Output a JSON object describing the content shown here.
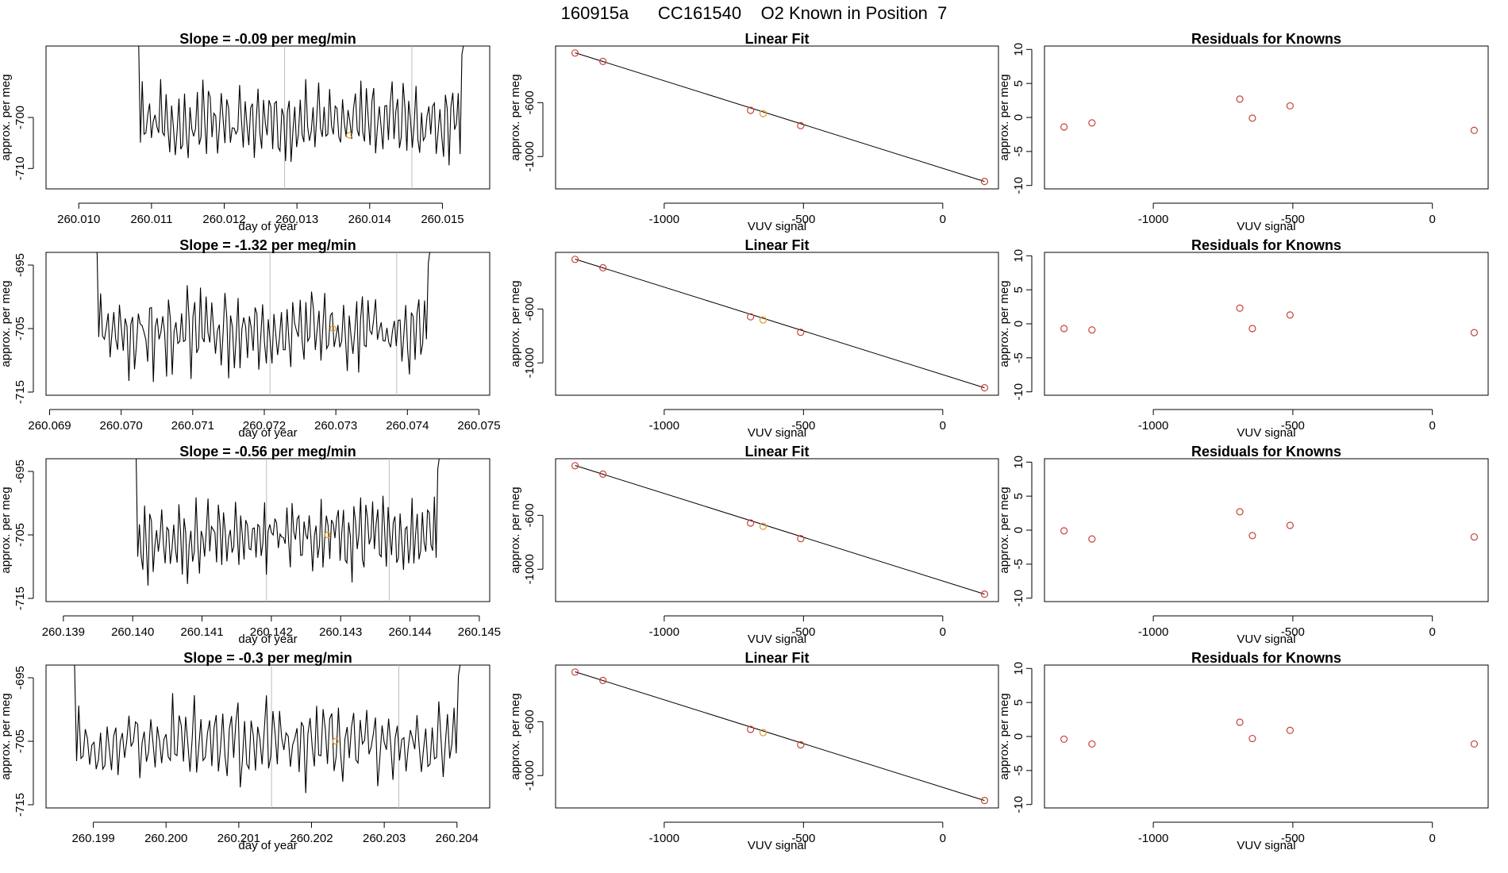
{
  "page": {
    "title": "160915a      CC161540    O2 Known in Position  7"
  },
  "colors": {
    "line": "#000000",
    "marker_red": "#c8413a",
    "marker_orange": "#e39a2a",
    "vertical_rule": "#bdbdbd",
    "axis": "#000000"
  },
  "chart_data": [
    {
      "type": "line",
      "row": 0,
      "col": 0,
      "title": "Slope =  -0.09  per meg/min",
      "xlabel": "day of year",
      "ylabel": "approx. per meg",
      "xlim": [
        260.00955,
        260.01565
      ],
      "ylim": [
        -714,
        -686
      ],
      "xticks": [
        260.01,
        260.011,
        260.012,
        260.013,
        260.014,
        260.015
      ],
      "xtick_labels": [
        "260.010",
        "260.011",
        "260.012",
        "260.013",
        "260.014",
        "260.015"
      ],
      "yticks": [
        -700,
        -710
      ],
      "ytick_labels": [
        "-700",
        "-710"
      ],
      "vlines": [
        260.01283,
        260.01458
      ],
      "orange_point": {
        "x": 260.01372,
        "y": -703.5
      },
      "x_start": 260.01062,
      "x_end": 260.01542,
      "seed": 11
    },
    {
      "type": "scatter",
      "row": 0,
      "col": 1,
      "title": "Linear Fit",
      "xlabel": "VUV signal",
      "ylabel": "approx. per meg",
      "xlim": [
        -1390,
        200
      ],
      "ylim": [
        -1240,
        -180
      ],
      "xticks": [
        -1000,
        -500,
        0
      ],
      "xtick_labels": [
        "-1000",
        "-500",
        "0"
      ],
      "yticks": [
        -600,
        -1000
      ],
      "ytick_labels": [
        "-600",
        "-1000"
      ],
      "fit_line": [
        [
          -1320,
          -230
        ],
        [
          150,
          -1185
        ]
      ],
      "red_points": [
        [
          -1320,
          -232
        ],
        [
          -1220,
          -294
        ],
        [
          -690,
          -657
        ],
        [
          -510,
          -771
        ],
        [
          150,
          -1185
        ]
      ],
      "orange_points": [
        [
          -645,
          -681
        ]
      ]
    },
    {
      "type": "scatter",
      "row": 0,
      "col": 2,
      "title": "Residuals for Knowns",
      "xlabel": "VUV signal",
      "ylabel": "approx. per meg",
      "xlim": [
        -1390,
        200
      ],
      "ylim": [
        -10.5,
        10.5
      ],
      "xticks": [
        -1000,
        -500,
        0
      ],
      "xtick_labels": [
        "-1000",
        "-500",
        "0"
      ],
      "yticks": [
        10,
        5,
        0,
        -5,
        -10
      ],
      "ytick_labels": [
        "10",
        "5",
        "0",
        "-5",
        "-10"
      ],
      "red_points": [
        [
          -1320,
          -1.4
        ],
        [
          -1220,
          -0.8
        ],
        [
          -690,
          2.7
        ],
        [
          -645,
          -0.1
        ],
        [
          -510,
          1.7
        ],
        [
          150,
          -1.9
        ]
      ]
    },
    {
      "type": "line",
      "row": 1,
      "col": 0,
      "title": "Slope =  -1.32  per meg/min",
      "xlabel": "day of year",
      "ylabel": "approx. per meg",
      "xlim": [
        260.06895,
        260.07515
      ],
      "ylim": [
        -715.5,
        -693
      ],
      "xticks": [
        260.069,
        260.07,
        260.071,
        260.072,
        260.073,
        260.074,
        260.075
      ],
      "xtick_labels": [
        "260.069",
        "260.070",
        "260.071",
        "260.072",
        "260.073",
        "260.074",
        "260.075"
      ],
      "yticks": [
        -695,
        -705,
        -715
      ],
      "ytick_labels": [
        "-695",
        "-705",
        "-715"
      ],
      "vlines": [
        260.07208,
        260.07385
      ],
      "orange_point": {
        "x": 260.07296,
        "y": -705
      },
      "x_start": 260.06945,
      "x_end": 260.07445,
      "seed": 23
    },
    {
      "type": "scatter",
      "row": 1,
      "col": 1,
      "title": "Linear Fit",
      "xlabel": "VUV signal",
      "ylabel": "approx. per meg",
      "xlim": [
        -1390,
        200
      ],
      "ylim": [
        -1240,
        -180
      ],
      "xticks": [
        -1000,
        -500,
        0
      ],
      "xtick_labels": [
        "-1000",
        "-500",
        "0"
      ],
      "yticks": [
        -600,
        -1000
      ],
      "ytick_labels": [
        "-600",
        "-1000"
      ],
      "fit_line": [
        [
          -1320,
          -230
        ],
        [
          150,
          -1185
        ]
      ],
      "red_points": [
        [
          -1320,
          -232
        ],
        [
          -1220,
          -294
        ],
        [
          -690,
          -658
        ],
        [
          -510,
          -773
        ],
        [
          150,
          -1185
        ]
      ],
      "orange_points": [
        [
          -645,
          -681
        ]
      ]
    },
    {
      "type": "scatter",
      "row": 1,
      "col": 2,
      "title": "Residuals for Knowns",
      "xlabel": "VUV signal",
      "ylabel": "approx. per meg",
      "xlim": [
        -1390,
        200
      ],
      "ylim": [
        -10.5,
        10.5
      ],
      "xticks": [
        -1000,
        -500,
        0
      ],
      "xtick_labels": [
        "-1000",
        "-500",
        "0"
      ],
      "yticks": [
        10,
        5,
        0,
        -5,
        -10
      ],
      "ytick_labels": [
        "10",
        "5",
        "0",
        "-5",
        "-10"
      ],
      "red_points": [
        [
          -1320,
          -0.7
        ],
        [
          -1220,
          -0.9
        ],
        [
          -690,
          2.3
        ],
        [
          -645,
          -0.7
        ],
        [
          -510,
          1.3
        ],
        [
          150,
          -1.3
        ]
      ]
    },
    {
      "type": "line",
      "row": 2,
      "col": 0,
      "title": "Slope =  -0.56  per meg/min",
      "xlabel": "day of year",
      "ylabel": "approx. per meg",
      "xlim": [
        260.13875,
        260.14515
      ],
      "ylim": [
        -715.5,
        -693
      ],
      "xticks": [
        260.139,
        260.14,
        260.141,
        260.142,
        260.143,
        260.144,
        260.145
      ],
      "xtick_labels": [
        "260.139",
        "260.140",
        "260.141",
        "260.142",
        "260.143",
        "260.144",
        "260.145"
      ],
      "yticks": [
        -695,
        -705,
        -715
      ],
      "ytick_labels": [
        "-695",
        "-705",
        "-715"
      ],
      "vlines": [
        260.14193,
        260.1437
      ],
      "orange_point": {
        "x": 260.14281,
        "y": -705
      },
      "x_start": 260.13985,
      "x_end": 260.14455,
      "seed": 37
    },
    {
      "type": "scatter",
      "row": 2,
      "col": 1,
      "title": "Linear Fit",
      "xlabel": "VUV signal",
      "ylabel": "approx. per meg",
      "xlim": [
        -1390,
        200
      ],
      "ylim": [
        -1240,
        -180
      ],
      "xticks": [
        -1000,
        -500,
        0
      ],
      "xtick_labels": [
        "-1000",
        "-500",
        "0"
      ],
      "yticks": [
        -600,
        -1000
      ],
      "ytick_labels": [
        "-600",
        "-1000"
      ],
      "fit_line": [
        [
          -1320,
          -230
        ],
        [
          150,
          -1185
        ]
      ],
      "red_points": [
        [
          -1320,
          -232
        ],
        [
          -1220,
          -294
        ],
        [
          -690,
          -657
        ],
        [
          -510,
          -773
        ],
        [
          150,
          -1185
        ]
      ],
      "orange_points": [
        [
          -645,
          -681
        ]
      ]
    },
    {
      "type": "scatter",
      "row": 2,
      "col": 2,
      "title": "Residuals for Knowns",
      "xlabel": "VUV signal",
      "ylabel": "approx. per meg",
      "xlim": [
        -1390,
        200
      ],
      "ylim": [
        -10.5,
        10.5
      ],
      "xticks": [
        -1000,
        -500,
        0
      ],
      "xtick_labels": [
        "-1000",
        "-500",
        "0"
      ],
      "yticks": [
        10,
        5,
        0,
        -5,
        -10
      ],
      "ytick_labels": [
        "10",
        "5",
        "0",
        "-5",
        "-10"
      ],
      "red_points": [
        [
          -1320,
          -0.1
        ],
        [
          -1220,
          -1.3
        ],
        [
          -690,
          2.7
        ],
        [
          -645,
          -0.8
        ],
        [
          -510,
          0.7
        ],
        [
          150,
          -1.0
        ]
      ]
    },
    {
      "type": "line",
      "row": 3,
      "col": 0,
      "title": "Slope =  -0.3  per meg/min",
      "xlabel": "day of year",
      "ylabel": "approx. per meg",
      "xlim": [
        260.19835,
        260.20445
      ],
      "ylim": [
        -715.5,
        -693
      ],
      "xticks": [
        260.199,
        260.2,
        260.201,
        260.202,
        260.203,
        260.204
      ],
      "xtick_labels": [
        "260.199",
        "260.200",
        "260.201",
        "260.202",
        "260.203",
        "260.204"
      ],
      "yticks": [
        -695,
        -705,
        -715
      ],
      "ytick_labels": [
        "-695",
        "-705",
        "-715"
      ],
      "vlines": [
        260.20145,
        260.2032
      ],
      "orange_point": {
        "x": 260.20233,
        "y": -705
      },
      "x_start": 260.1985,
      "x_end": 260.2042,
      "seed": 53
    },
    {
      "type": "scatter",
      "row": 3,
      "col": 1,
      "title": "Linear Fit",
      "xlabel": "VUV signal",
      "ylabel": "approx. per meg",
      "xlim": [
        -1390,
        200
      ],
      "ylim": [
        -1240,
        -180
      ],
      "xticks": [
        -1000,
        -500,
        0
      ],
      "xtick_labels": [
        "-1000",
        "-500",
        "0"
      ],
      "yticks": [
        -600,
        -1000
      ],
      "ytick_labels": [
        "-600",
        "-1000"
      ],
      "fit_line": [
        [
          -1320,
          -230
        ],
        [
          150,
          -1185
        ]
      ],
      "red_points": [
        [
          -1320,
          -232
        ],
        [
          -1220,
          -294
        ],
        [
          -690,
          -657
        ],
        [
          -510,
          -772
        ],
        [
          150,
          -1185
        ]
      ],
      "orange_points": [
        [
          -645,
          -681
        ]
      ]
    },
    {
      "type": "scatter",
      "row": 3,
      "col": 2,
      "title": "Residuals for Knowns",
      "xlabel": "VUV signal",
      "ylabel": "approx. per meg",
      "xlim": [
        -1390,
        200
      ],
      "ylim": [
        -10.5,
        10.5
      ],
      "xticks": [
        -1000,
        -500,
        0
      ],
      "xtick_labels": [
        "-1000",
        "-500",
        "0"
      ],
      "yticks": [
        10,
        5,
        0,
        -5,
        -10
      ],
      "ytick_labels": [
        "10",
        "5",
        "0",
        "-5",
        "-10"
      ],
      "red_points": [
        [
          -1320,
          -0.4
        ],
        [
          -1220,
          -1.1
        ],
        [
          -690,
          2.1
        ],
        [
          -645,
          -0.3
        ],
        [
          -510,
          0.9
        ],
        [
          150,
          -1.1
        ]
      ]
    }
  ]
}
